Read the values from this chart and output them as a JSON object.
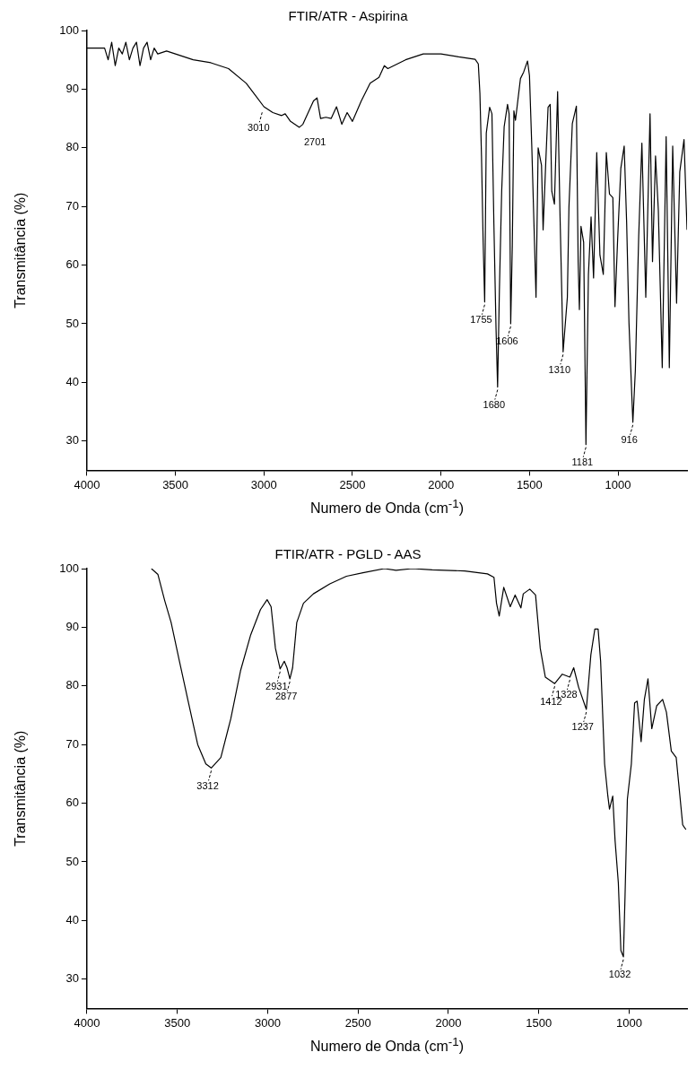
{
  "chart_data": [
    {
      "type": "line",
      "title": "FTIR/ATR - Aspirina",
      "xlabel": "Numero de Onda (cm$^{-1}$)",
      "ylabel": "Transmitância (%)",
      "xlim": [
        4000,
        610
      ],
      "ylim": [
        25,
        100
      ],
      "xticks": [
        4000,
        3500,
        3000,
        2500,
        2000,
        1500,
        1000
      ],
      "yticks": [
        30,
        40,
        50,
        60,
        70,
        80,
        90,
        100
      ],
      "grid": false,
      "legend": false,
      "series": [
        {
          "color": "#000000",
          "x": [
            4000,
            3950,
            3900,
            3880,
            3860,
            3840,
            3820,
            3800,
            3780,
            3760,
            3740,
            3720,
            3700,
            3680,
            3660,
            3640,
            3620,
            3600,
            3550,
            3500,
            3400,
            3300,
            3200,
            3100,
            3050,
            3000,
            2950,
            2900,
            2880,
            2850,
            2800,
            2780,
            2750,
            2720,
            2700,
            2680,
            2650,
            2620,
            2590,
            2560,
            2530,
            2500,
            2450,
            2400,
            2350,
            2320,
            2300,
            2200,
            2100,
            2000,
            1900,
            1807,
            1789,
            1780,
            1771,
            1762,
            1753,
            1744,
            1725,
            1712,
            1701,
            1689,
            1680,
            1670,
            1657,
            1643,
            1624,
            1615,
            1606,
            1597,
            1588,
            1579,
            1551,
            1533,
            1511,
            1500,
            1487,
            1463,
            1451,
            1432,
            1423,
            1408,
            1395,
            1383,
            1374,
            1359,
            1341,
            1328,
            1310,
            1286,
            1277,
            1258,
            1235,
            1225,
            1218,
            1209,
            1194,
            1181,
            1167,
            1152,
            1138,
            1120,
            1102,
            1083,
            1066,
            1048,
            1029,
            1017,
            1002,
            984,
            965,
            951,
            938,
            916,
            902,
            883,
            865,
            843,
            819,
            805,
            788,
            772,
            750,
            728,
            710,
            691,
            669,
            651,
            627,
            610
          ],
          "values": [
            97,
            97,
            97,
            95,
            98,
            94,
            97,
            96,
            98,
            95,
            97,
            98,
            94,
            97,
            98,
            95,
            97,
            96,
            96.5,
            96,
            95,
            94.5,
            93.5,
            91,
            89,
            87,
            86,
            85.5,
            85.8,
            84.5,
            83.5,
            84,
            86,
            88,
            88.5,
            85,
            85.2,
            85,
            87,
            84,
            86,
            84.5,
            88,
            91,
            92,
            94,
            93.5,
            95,
            96,
            96,
            95.5,
            95.1,
            94.3,
            89.3,
            78.6,
            64.4,
            53.7,
            82.5,
            86.9,
            85.8,
            67,
            49.3,
            39.2,
            55.6,
            72.6,
            83.6,
            87.4,
            85.8,
            50,
            63.3,
            86.3,
            84.7,
            91.8,
            92.9,
            94.8,
            92.3,
            80.3,
            54.5,
            80,
            77,
            66,
            77.5,
            86.9,
            87.4,
            72.6,
            70.4,
            89.6,
            69.3,
            45.2,
            54.5,
            69.9,
            84.1,
            87.1,
            60.6,
            52.4,
            66.6,
            63.9,
            29.4,
            58.4,
            68.2,
            57.8,
            79.2,
            61.7,
            58.4,
            79.2,
            72.1,
            71.5,
            52.9,
            64.4,
            76.5,
            80.3,
            67.1,
            50.2,
            33.2,
            42,
            64.9,
            80.8,
            54.5,
            85.8,
            60.6,
            78.6,
            69.3,
            42.5,
            81.9,
            42.5,
            80.3,
            53.5,
            75.9,
            81.4,
            66
          ]
        }
      ],
      "annotations": [
        {
          "text": "3010",
          "x": 3010,
          "y": 86.5
        },
        "2701",
        {
          "text": "1755",
          "x": 1753,
          "y": 53.7
        },
        {
          "text": "1680",
          "x": 1680,
          "y": 39.2
        },
        {
          "text": "1606",
          "x": 1606,
          "y": 50
        },
        {
          "text": "1310",
          "x": 1310,
          "y": 45.2
        },
        {
          "text": "1181",
          "x": 1181,
          "y": 29.4
        },
        {
          "text": "916",
          "x": 916,
          "y": 33.2
        }
      ]
    },
    {
      "type": "line",
      "title": "FTIR/ATR - PGLD - AAS",
      "xlabel": "Numero de Onda (cm$^{-1}$)",
      "ylabel": "Transmitância (%)",
      "xlim": [
        4000,
        680
      ],
      "ylim": [
        25,
        100
      ],
      "xticks": [
        4000,
        3500,
        3000,
        2500,
        2000,
        1500,
        1000
      ],
      "yticks": [
        30,
        40,
        50,
        60,
        70,
        80,
        90,
        100
      ],
      "grid": false,
      "legend": false,
      "series": [
        {
          "color": "#000000",
          "x": [
            3643,
            3607,
            3570,
            3534,
            3488,
            3442,
            3387,
            3342,
            3312,
            3259,
            3204,
            3150,
            3095,
            3040,
            3003,
            2981,
            2957,
            2931,
            2908,
            2893,
            2877,
            2862,
            2839,
            2802,
            2747,
            2656,
            2564,
            2473,
            2354,
            2290,
            2200,
            2090,
            1910,
            1784,
            1748,
            1734,
            1719,
            1694,
            1658,
            1631,
            1599,
            1586,
            1550,
            1518,
            1492,
            1464,
            1446,
            1412,
            1370,
            1328,
            1307,
            1280,
            1237,
            1212,
            1190,
            1172,
            1158,
            1136,
            1118,
            1109,
            1091,
            1078,
            1060,
            1046,
            1032,
            1023,
            1010,
            988,
            970,
            956,
            934,
            916,
            896,
            875,
            848,
            815,
            794,
            767,
            740,
            704,
            686
          ],
          "values": [
            100,
            99,
            94.6,
            90.8,
            84.2,
            77.7,
            70,
            66.7,
            66,
            67.8,
            74.4,
            82.6,
            88.6,
            93,
            94.7,
            93.5,
            86.4,
            82.9,
            84.2,
            83.1,
            81.2,
            83.1,
            90.8,
            94.1,
            95.7,
            97.4,
            98.7,
            99.3,
            100,
            99.7,
            100,
            99.8,
            99.6,
            99.1,
            98.5,
            94.1,
            91.9,
            96.8,
            93.5,
            95.5,
            93.3,
            95.7,
            96.5,
            95.5,
            86.4,
            81.5,
            81.1,
            80.4,
            82,
            81.5,
            83.1,
            79.8,
            76,
            85.3,
            89.7,
            89.7,
            84.2,
            66.7,
            61.2,
            59,
            61.2,
            53.6,
            46.4,
            34.9,
            33.8,
            44.1,
            60.7,
            66.7,
            77.1,
            77.4,
            70.5,
            77.7,
            81.2,
            72.7,
            76.6,
            77.7,
            75.5,
            68.9,
            67.8,
            56.3,
            55.5
          ]
        }
      ],
      "annotations": [
        {
          "text": "3312",
          "x": 3312,
          "y": 66
        },
        {
          "text": "2931",
          "x": 2931,
          "y": 82.9
        },
        {
          "text": "2877",
          "x": 2877,
          "y": 81.2
        },
        {
          "text": "1412",
          "x": 1412,
          "y": 80.4
        },
        {
          "text": "1328",
          "x": 1328,
          "y": 81.5
        },
        {
          "text": "1237",
          "x": 1237,
          "y": 76
        },
        {
          "text": "1032",
          "x": 1032,
          "y": 33.8
        }
      ]
    }
  ]
}
